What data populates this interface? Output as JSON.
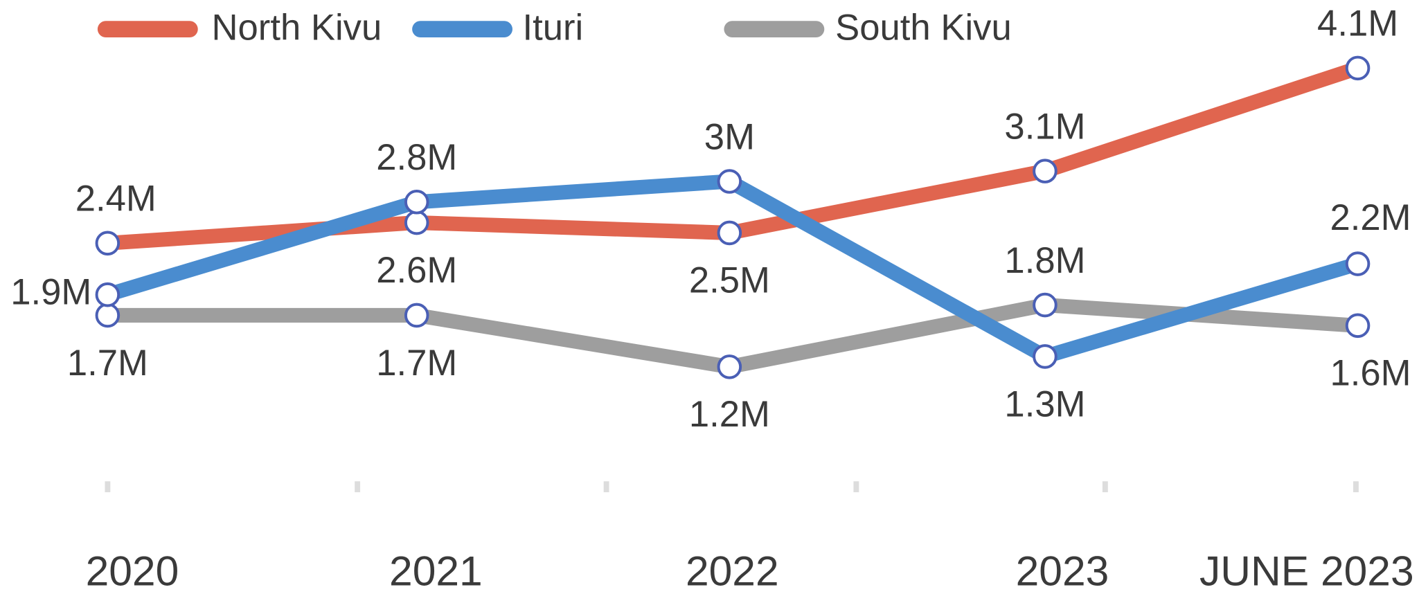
{
  "chart_data": {
    "type": "line",
    "categories": [
      "2020",
      "2021",
      "2022",
      "2023",
      "JUNE 2023"
    ],
    "series": [
      {
        "name": "North Kivu",
        "color": "#e0654f",
        "values": [
          2400000,
          2600000,
          2500000,
          3100000,
          4100000
        ],
        "value_labels": [
          "2.4M",
          "2.6M",
          "2.5M",
          "3.1M",
          "4.1M"
        ]
      },
      {
        "name": "Ituri",
        "color": "#4a8ccf",
        "values": [
          1900000,
          2800000,
          3000000,
          1300000,
          2200000
        ],
        "value_labels": [
          "1.9M",
          "2.8M",
          "3M",
          "1.3M",
          "2.2M"
        ]
      },
      {
        "name": "South Kivu",
        "color": "#9e9e9e",
        "values": [
          1700000,
          1700000,
          1200000,
          1800000,
          1600000
        ],
        "value_labels": [
          "1.7M",
          "1.7M",
          "1.2M",
          "1.8M",
          "1.6M"
        ]
      }
    ],
    "legend": "top"
  }
}
